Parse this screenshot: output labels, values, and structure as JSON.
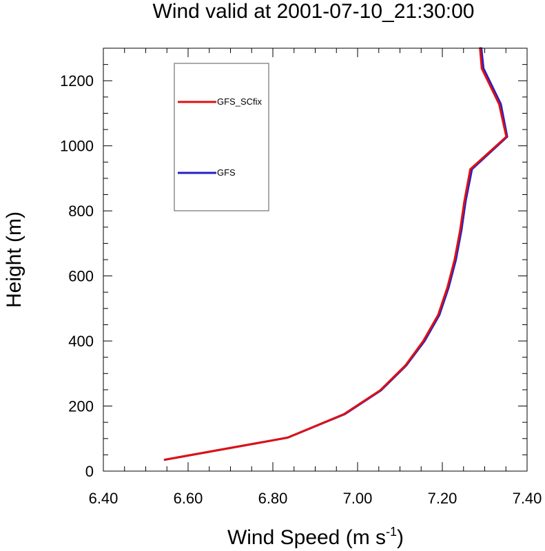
{
  "chart_data": {
    "type": "line",
    "title": "Wind valid at 2001-07-10_21:30:00",
    "xlabel_main": "Wind Speed (m s",
    "xlabel_sup": "-1",
    "xlabel_close": ")",
    "ylabel": "Height (m)",
    "xlim": [
      6.4,
      7.4
    ],
    "ylim": [
      0,
      1300
    ],
    "xticks": [
      {
        "value": 6.4,
        "label": "6.40"
      },
      {
        "value": 6.6,
        "label": "6.60"
      },
      {
        "value": 6.8,
        "label": "6.80"
      },
      {
        "value": 7.0,
        "label": "7.00"
      },
      {
        "value": 7.2,
        "label": "7.20"
      },
      {
        "value": 7.4,
        "label": "7.40"
      }
    ],
    "yticks": [
      {
        "value": 0,
        "label": "0"
      },
      {
        "value": 200,
        "label": "200"
      },
      {
        "value": 400,
        "label": "400"
      },
      {
        "value": 600,
        "label": "600"
      },
      {
        "value": 800,
        "label": "800"
      },
      {
        "value": 1000,
        "label": "1000"
      },
      {
        "value": 1200,
        "label": "1200"
      }
    ],
    "grid": false,
    "legend_position": "top-left",
    "series": [
      {
        "name": "GFS",
        "color": "#1f1fcc",
        "points": [
          [
            6.545,
            35
          ],
          [
            6.835,
            103
          ],
          [
            6.97,
            175
          ],
          [
            7.055,
            248
          ],
          [
            7.115,
            325
          ],
          [
            7.158,
            400
          ],
          [
            7.193,
            480
          ],
          [
            7.215,
            565
          ],
          [
            7.232,
            650
          ],
          [
            7.245,
            740
          ],
          [
            7.255,
            830
          ],
          [
            7.27,
            928
          ],
          [
            7.353,
            1028
          ],
          [
            7.338,
            1128
          ],
          [
            7.297,
            1238
          ],
          [
            7.292,
            1300
          ]
        ]
      },
      {
        "name": "GFS_SCfix",
        "color": "#e01010",
        "points": [
          [
            6.545,
            35
          ],
          [
            6.835,
            103
          ],
          [
            6.968,
            175
          ],
          [
            7.053,
            248
          ],
          [
            7.113,
            325
          ],
          [
            7.155,
            400
          ],
          [
            7.19,
            480
          ],
          [
            7.212,
            565
          ],
          [
            7.229,
            650
          ],
          [
            7.242,
            740
          ],
          [
            7.252,
            830
          ],
          [
            7.266,
            928
          ],
          [
            7.351,
            1028
          ],
          [
            7.334,
            1128
          ],
          [
            7.293,
            1238
          ],
          [
            7.289,
            1300
          ]
        ]
      }
    ],
    "legend_order": [
      "GFS_SCfix",
      "GFS"
    ]
  }
}
